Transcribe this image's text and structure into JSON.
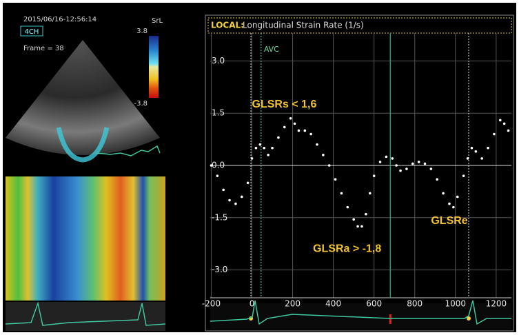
{
  "echo_panel": {
    "timestamp": "2015/06/16-12:56:14",
    "view": "4CH",
    "frame": "Frame = 38",
    "scale_name": "SrL",
    "scale_max": "3.8",
    "scale_min": "-3.8"
  },
  "chart_data": {
    "type": "line",
    "title_prefix": "LOCAL:",
    "title": "Longitudinal Strain Rate (1/s)",
    "color": "#ffffff",
    "line_style": "dotted",
    "grid": true,
    "x": [
      -200,
      -170,
      -140,
      -110,
      -80,
      -50,
      -20,
      0,
      20,
      40,
      60,
      80,
      100,
      130,
      160,
      190,
      210,
      230,
      260,
      290,
      320,
      350,
      380,
      410,
      440,
      470,
      500,
      520,
      540,
      560,
      580,
      600,
      630,
      660,
      690,
      710,
      730,
      760,
      790,
      820,
      850,
      880,
      910,
      940,
      970,
      990,
      1010,
      1040,
      1060,
      1080,
      1100,
      1130,
      1160,
      1190,
      1220,
      1240,
      1260
    ],
    "values": [
      0.0,
      -0.3,
      -0.7,
      -1.0,
      -1.1,
      -0.9,
      -0.5,
      0.2,
      0.5,
      0.6,
      0.5,
      0.3,
      0.5,
      0.8,
      1.1,
      1.35,
      1.2,
      1.0,
      1.0,
      0.9,
      0.6,
      0.3,
      0.0,
      -0.4,
      -0.8,
      -1.2,
      -1.55,
      -1.75,
      -1.75,
      -1.4,
      -0.8,
      -0.3,
      0.1,
      0.25,
      0.2,
      0.0,
      -0.15,
      -0.1,
      0.05,
      0.1,
      0.05,
      -0.1,
      -0.4,
      -0.8,
      -1.1,
      -1.2,
      -0.9,
      -0.3,
      0.2,
      0.5,
      0.4,
      0.2,
      0.5,
      0.9,
      1.3,
      1.2,
      1.0
    ],
    "xlim": [
      -205,
      1275
    ],
    "ylim": [
      -3.8,
      3.8
    ],
    "xticks": [
      -200,
      0,
      200,
      400,
      600,
      800,
      1000,
      1200
    ],
    "yticks": [
      {
        "value": 3,
        "label": "3.0"
      },
      {
        "value": 1.5,
        "label": "1.5"
      },
      {
        "value": 0,
        "label": "0.0"
      },
      {
        "value": -1.5,
        "label": "-1.5"
      },
      {
        "value": -3,
        "label": "-3.0"
      }
    ],
    "event_lines": [
      -5,
      1065
    ],
    "ecg_marker": 680,
    "avc": {
      "label": "AVC",
      "x": 45
    },
    "annotations": [
      {
        "text": "GLSRs < 1,6",
        "x": 0,
        "y": 1.75
      },
      {
        "text": "GLSRa > -1,8",
        "x": 300,
        "y": -2.4
      },
      {
        "text": "GLSRe",
        "x": 880,
        "y": -1.6
      }
    ]
  }
}
